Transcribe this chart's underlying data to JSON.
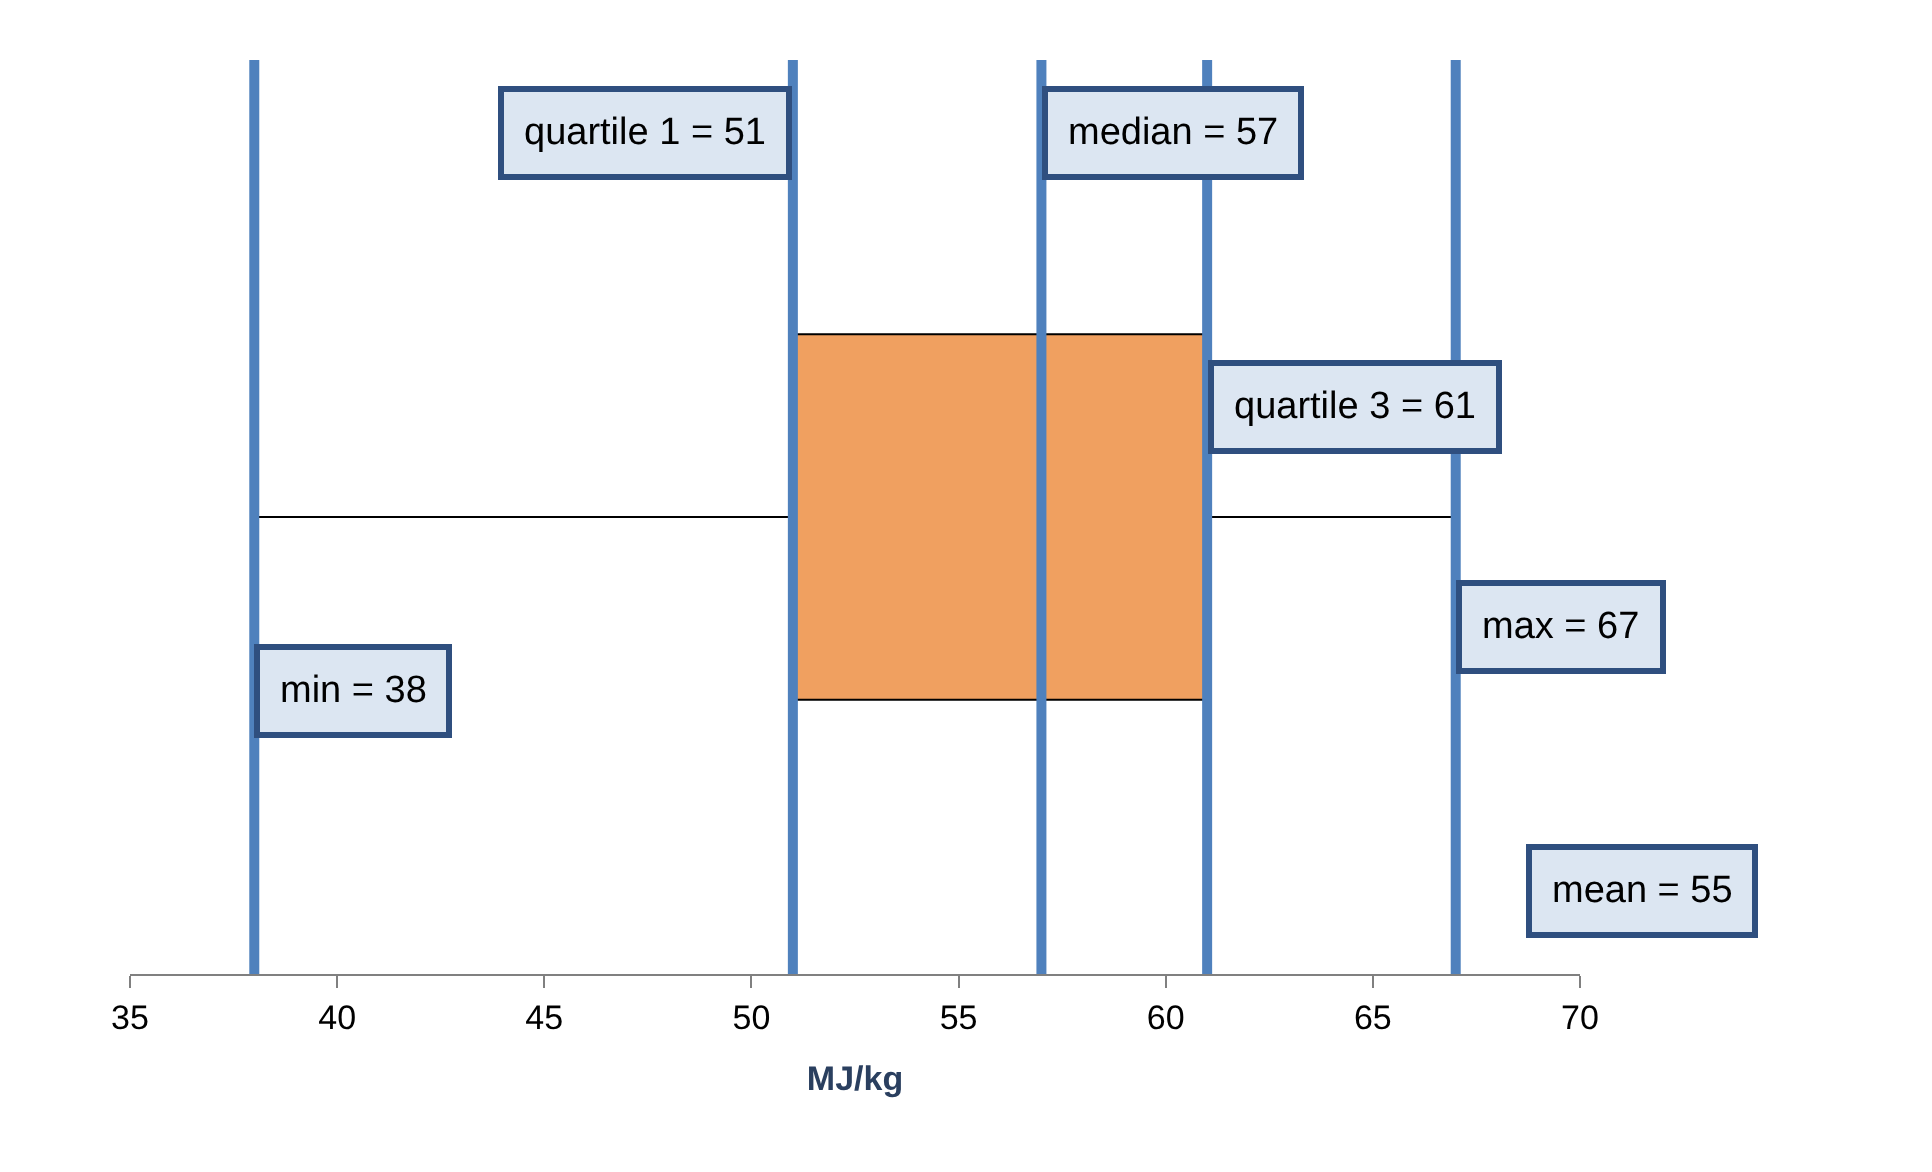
{
  "chart_data": {
    "type": "box",
    "orientation": "horizontal",
    "categories": [
      null
    ],
    "xlabel": "MJ/kg",
    "boxes": [
      {
        "low": 38,
        "q1": 51,
        "median": 57,
        "q3": 61,
        "high": 67
      }
    ],
    "color": "#f0a060",
    "xlim": [
      35,
      70
    ],
    "xticks": [
      35,
      40,
      45,
      50,
      55,
      60,
      65,
      70
    ],
    "tick_labels": "x",
    "legend": false,
    "ref_lines": [
      {
        "axis": "x",
        "value": 38,
        "label": "min = 38",
        "color": "#4f81bd"
      },
      {
        "axis": "x",
        "value": 51,
        "label": "quartile 1 = 51",
        "color": "#4f81bd"
      },
      {
        "axis": "x",
        "value": 57,
        "label": "median = 57",
        "color": "#4f81bd"
      },
      {
        "axis": "x",
        "value": 61,
        "label": "quartile 3 = 61",
        "color": "#4f81bd"
      },
      {
        "axis": "x",
        "value": 67,
        "label": "max = 67",
        "color": "#4f81bd"
      }
    ],
    "annotations": [
      "mean = 55"
    ]
  }
}
